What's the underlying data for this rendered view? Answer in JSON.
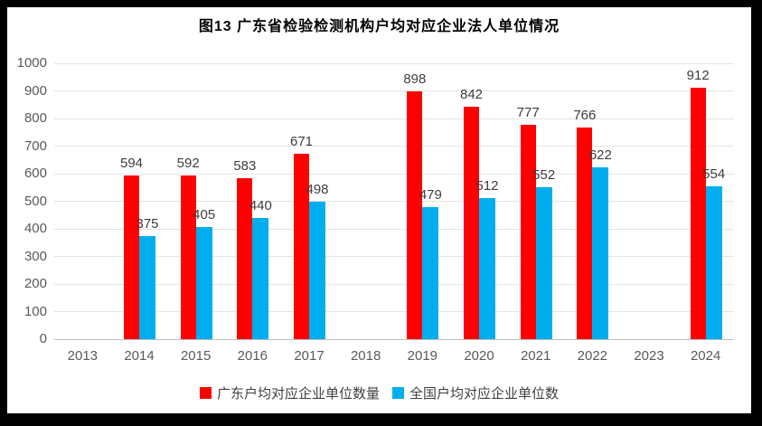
{
  "chart_data": {
    "type": "bar",
    "title": "图13 广东省检验检测机构户均对应企业法人单位情况",
    "categories": [
      "2013",
      "2014",
      "2015",
      "2016",
      "2017",
      "2018",
      "2019",
      "2020",
      "2021",
      "2022",
      "2023",
      "2024"
    ],
    "series": [
      {
        "name": "广东户均对应企业单位数量",
        "color": "#FE0000",
        "values": [
          null,
          594,
          592,
          583,
          671,
          null,
          898,
          842,
          777,
          766,
          null,
          912
        ]
      },
      {
        "name": "全国户均对应企业单位数",
        "color": "#00AEEF",
        "values": [
          null,
          375,
          405,
          440,
          498,
          null,
          479,
          512,
          552,
          622,
          null,
          554
        ]
      }
    ],
    "xlabel": "",
    "ylabel": "",
    "ylim": [
      0,
      1000
    ],
    "yticks": [
      0,
      100,
      200,
      300,
      400,
      500,
      600,
      700,
      800,
      900,
      1000
    ],
    "grid": true,
    "legend_position": "bottom",
    "colors": {
      "background": "#FFFFFF",
      "frame_border": "#000000",
      "gridline": "#E4E4E4",
      "axis_line": "#BFBFBF",
      "tick_label": "#595959",
      "value_label": "#3D3D3D",
      "title": "#000000"
    }
  }
}
